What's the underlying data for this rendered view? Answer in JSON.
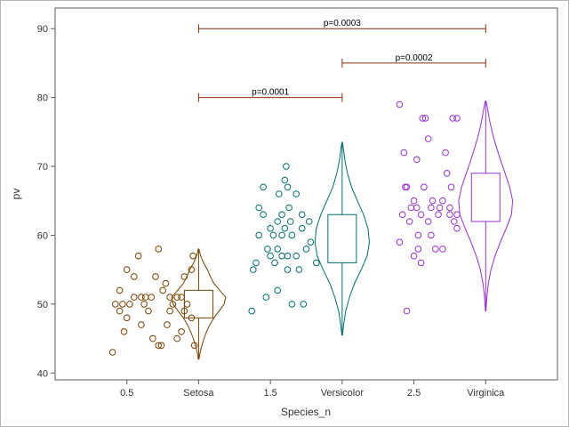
{
  "chart_data": {
    "type": "violin-scatter",
    "title": "",
    "xlabel": "Species_n",
    "ylabel": "pv",
    "xlim": [
      0,
      3.5
    ],
    "ylim": [
      39,
      93
    ],
    "x_ticks": [
      {
        "x": 0.5,
        "label": "0.5"
      },
      {
        "x": 1.0,
        "label": "Setosa"
      },
      {
        "x": 1.5,
        "label": "1.5"
      },
      {
        "x": 2.0,
        "label": "Versicolor"
      },
      {
        "x": 2.5,
        "label": "2.5"
      },
      {
        "x": 3.0,
        "label": "Virginica"
      }
    ],
    "y_ticks": [
      40,
      50,
      60,
      70,
      80,
      90
    ],
    "grid": false,
    "legend": "none",
    "groups": [
      {
        "name": "Setosa",
        "x": 1.0,
        "color": "#7a4100",
        "violin": {
          "profile": [
            [
              42,
              0.01
            ],
            [
              43,
              0.05
            ],
            [
              44,
              0.11
            ],
            [
              45,
              0.18
            ],
            [
              46,
              0.27
            ],
            [
              47,
              0.38
            ],
            [
              48,
              0.52
            ],
            [
              49,
              0.7
            ],
            [
              50,
              0.87
            ],
            [
              51,
              0.92
            ],
            [
              52,
              0.72
            ],
            [
              53,
              0.52
            ],
            [
              54,
              0.4
            ],
            [
              55,
              0.3
            ],
            [
              56,
              0.17
            ],
            [
              57,
              0.07
            ],
            [
              58,
              0.01
            ]
          ]
        },
        "box": {
          "q1": 48,
          "q3": 52,
          "whisker_low": 42,
          "whisker_high": 58
        },
        "points": [
          [
            0.4,
            43
          ],
          [
            0.42,
            50
          ],
          [
            0.45,
            52
          ],
          [
            0.48,
            46
          ],
          [
            0.5,
            55
          ],
          [
            0.45,
            49
          ],
          [
            0.5,
            48
          ],
          [
            0.52,
            50
          ],
          [
            0.55,
            51
          ],
          [
            0.58,
            57
          ],
          [
            0.6,
            47
          ],
          [
            0.62,
            50
          ],
          [
            0.63,
            51
          ],
          [
            0.65,
            49
          ],
          [
            0.68,
            45
          ],
          [
            0.7,
            54
          ],
          [
            0.72,
            58
          ],
          [
            0.72,
            44
          ],
          [
            0.75,
            52
          ],
          [
            0.77,
            53
          ],
          [
            0.78,
            47
          ],
          [
            0.8,
            49
          ],
          [
            0.8,
            51
          ],
          [
            0.82,
            50
          ],
          [
            0.85,
            51
          ],
          [
            0.85,
            45
          ],
          [
            0.88,
            46
          ],
          [
            0.9,
            49
          ],
          [
            0.9,
            54
          ],
          [
            0.92,
            50
          ],
          [
            0.95,
            48
          ],
          [
            0.95,
            55
          ],
          [
            0.96,
            57
          ],
          [
            0.97,
            44
          ],
          [
            0.88,
            51
          ],
          [
            0.74,
            44
          ],
          [
            0.6,
            51
          ],
          [
            0.67,
            51
          ],
          [
            0.55,
            54
          ],
          [
            0.47,
            50
          ]
        ]
      },
      {
        "name": "Versicolor",
        "x": 2.0,
        "color": "#006e6e",
        "violin": {
          "profile": [
            [
              45.5,
              0.01
            ],
            [
              47,
              0.05
            ],
            [
              49,
              0.12
            ],
            [
              51,
              0.25
            ],
            [
              53,
              0.42
            ],
            [
              55,
              0.65
            ],
            [
              57,
              0.85
            ],
            [
              59,
              0.93
            ],
            [
              61,
              0.88
            ],
            [
              63,
              0.73
            ],
            [
              65,
              0.52
            ],
            [
              67,
              0.32
            ],
            [
              69,
              0.18
            ],
            [
              71,
              0.09
            ],
            [
              73,
              0.03
            ],
            [
              73.5,
              0.005
            ]
          ]
        },
        "box": {
          "q1": 56,
          "q3": 63,
          "whisker_low": 45.5,
          "whisker_high": 73.5
        },
        "points": [
          [
            1.37,
            49
          ],
          [
            1.38,
            55
          ],
          [
            1.4,
            56
          ],
          [
            1.42,
            60
          ],
          [
            1.42,
            64
          ],
          [
            1.45,
            63
          ],
          [
            1.45,
            67
          ],
          [
            1.47,
            51
          ],
          [
            1.48,
            58
          ],
          [
            1.5,
            61
          ],
          [
            1.5,
            57
          ],
          [
            1.52,
            60
          ],
          [
            1.53,
            56
          ],
          [
            1.55,
            52
          ],
          [
            1.55,
            62
          ],
          [
            1.55,
            58
          ],
          [
            1.56,
            66
          ],
          [
            1.58,
            60
          ],
          [
            1.58,
            57
          ],
          [
            1.6,
            61
          ],
          [
            1.6,
            68
          ],
          [
            1.61,
            70
          ],
          [
            1.62,
            57
          ],
          [
            1.62,
            55
          ],
          [
            1.62,
            67
          ],
          [
            1.63,
            64
          ],
          [
            1.65,
            60
          ],
          [
            1.65,
            50
          ],
          [
            1.68,
            57
          ],
          [
            1.68,
            66
          ],
          [
            1.7,
            55
          ],
          [
            1.72,
            61
          ],
          [
            1.72,
            63
          ],
          [
            1.73,
            50
          ],
          [
            1.75,
            58
          ],
          [
            1.77,
            62
          ],
          [
            1.78,
            59
          ],
          [
            1.82,
            56
          ],
          [
            1.58,
            63
          ],
          [
            1.64,
            62
          ]
        ]
      },
      {
        "name": "Virginica",
        "x": 3.0,
        "color": "#9a30d0",
        "violin": {
          "profile": [
            [
              49,
              0.01
            ],
            [
              51,
              0.04
            ],
            [
              53,
              0.09
            ],
            [
              55,
              0.18
            ],
            [
              57,
              0.32
            ],
            [
              59,
              0.5
            ],
            [
              61,
              0.7
            ],
            [
              63,
              0.88
            ],
            [
              65,
              0.92
            ],
            [
              67,
              0.82
            ],
            [
              69,
              0.66
            ],
            [
              71,
              0.5
            ],
            [
              73,
              0.35
            ],
            [
              75,
              0.22
            ],
            [
              77,
              0.12
            ],
            [
              79,
              0.04
            ],
            [
              79.5,
              0.01
            ]
          ]
        },
        "box": {
          "q1": 62,
          "q3": 69,
          "whisker_low": 49,
          "whisker_high": 79.5
        },
        "points": [
          [
            2.4,
            79
          ],
          [
            2.4,
            59
          ],
          [
            2.42,
            63
          ],
          [
            2.43,
            72
          ],
          [
            2.45,
            67
          ],
          [
            2.45,
            49
          ],
          [
            2.47,
            62
          ],
          [
            2.48,
            64
          ],
          [
            2.5,
            65
          ],
          [
            2.5,
            57
          ],
          [
            2.52,
            71
          ],
          [
            2.53,
            60
          ],
          [
            2.53,
            58
          ],
          [
            2.55,
            56
          ],
          [
            2.55,
            63
          ],
          [
            2.57,
            67
          ],
          [
            2.58,
            77
          ],
          [
            2.6,
            74
          ],
          [
            2.6,
            62
          ],
          [
            2.62,
            64
          ],
          [
            2.62,
            60
          ],
          [
            2.65,
            58
          ],
          [
            2.67,
            63
          ],
          [
            2.68,
            64
          ],
          [
            2.7,
            58
          ],
          [
            2.7,
            65
          ],
          [
            2.72,
            72
          ],
          [
            2.73,
            69
          ],
          [
            2.75,
            63
          ],
          [
            2.76,
            67
          ],
          [
            2.77,
            77
          ],
          [
            2.78,
            62
          ],
          [
            2.8,
            77
          ],
          [
            2.8,
            61
          ],
          [
            2.8,
            63
          ],
          [
            2.63,
            65
          ],
          [
            2.52,
            64
          ],
          [
            2.44,
            67
          ],
          [
            2.56,
            77
          ],
          [
            2.75,
            64
          ]
        ]
      }
    ],
    "brackets": [
      {
        "x1": 1.0,
        "x2": 2.0,
        "y": 80,
        "label": "p=0.0001"
      },
      {
        "x1": 2.0,
        "x2": 3.0,
        "y": 85,
        "label": "p=0.0002"
      },
      {
        "x1": 1.0,
        "x2": 3.0,
        "y": 90,
        "label": "p=0.0003"
      }
    ],
    "bracket_color": "#8b2e0a"
  }
}
